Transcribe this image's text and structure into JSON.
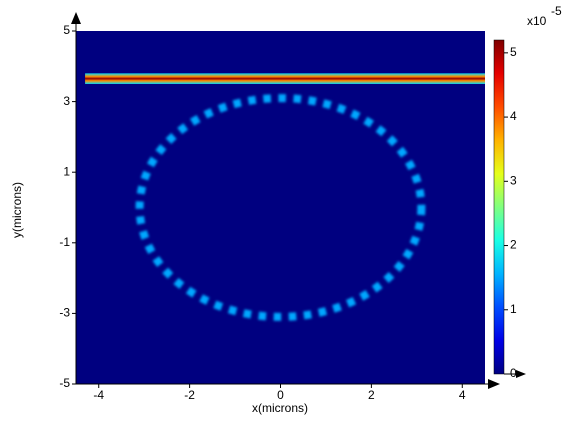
{
  "chart_data": {
    "type": "heatmap",
    "xlabel": "x(microns)",
    "ylabel": "y(microns)",
    "xlim": [
      -4.5,
      4.5
    ],
    "xticks": [
      -4,
      -2,
      0,
      2,
      4
    ],
    "ylim": [
      -5,
      5
    ],
    "yticks": [
      -5,
      -3,
      -1,
      1,
      3,
      5
    ],
    "colormap": "jet",
    "clim": [
      0,
      5.2
    ],
    "cticks": [
      0,
      1,
      2,
      3,
      4,
      5
    ],
    "colorbar_label": "x10",
    "colorbar_exponent": "-5",
    "background_value": 0,
    "waveguide": {
      "x_start": -4.3,
      "y": 3.65,
      "width": 0.3,
      "value": 5.1
    },
    "ring": {
      "cx": 0,
      "cy": 0,
      "r": 3.1,
      "value": 1.5
    }
  }
}
